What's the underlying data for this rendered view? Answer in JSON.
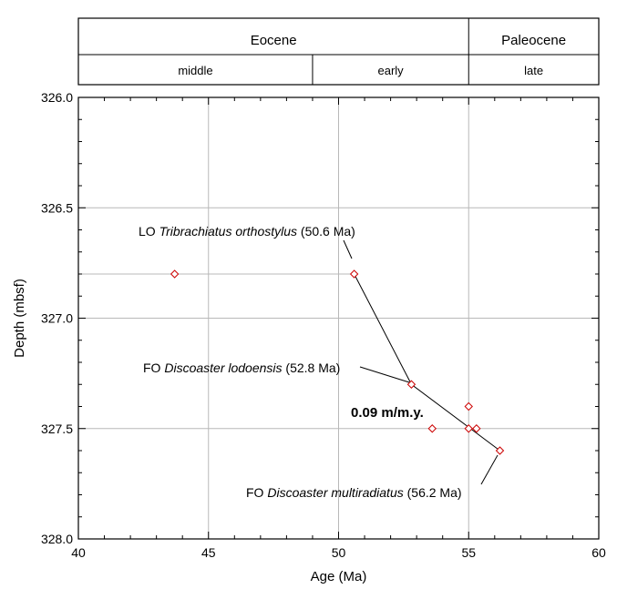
{
  "chart_data": {
    "type": "scatter",
    "xlabel": "Age (Ma)",
    "ylabel": "Depth (mbsf)",
    "xlim": [
      40,
      60
    ],
    "ylim": [
      326.0,
      328.0
    ],
    "y_inverted": true,
    "x_ticks": [
      "40",
      "45",
      "50",
      "55",
      "60"
    ],
    "y_ticks": [
      "326.0",
      "326.5",
      "327.0",
      "327.5",
      "328.0"
    ],
    "grid": true,
    "marker_color": "#cc0000",
    "line_color": "#000000",
    "timescale": {
      "epochs": [
        {
          "label": "Eocene",
          "from": 40,
          "to": 55
        },
        {
          "label": "Paleocene",
          "from": 55,
          "to": 60
        }
      ],
      "subdivisions": [
        {
          "label": "middle",
          "from": 40,
          "to": 49
        },
        {
          "label": "early",
          "from": 49,
          "to": 55
        },
        {
          "label": "late",
          "from": 55,
          "to": 60
        }
      ]
    },
    "points": [
      {
        "x": 43.7,
        "y": 326.8
      },
      {
        "x": 50.6,
        "y": 326.8
      },
      {
        "x": 52.8,
        "y": 327.3
      },
      {
        "x": 53.6,
        "y": 327.5
      },
      {
        "x": 55.0,
        "y": 327.4
      },
      {
        "x": 55.0,
        "y": 327.5
      },
      {
        "x": 55.3,
        "y": 327.5
      },
      {
        "x": 56.2,
        "y": 327.6
      }
    ],
    "line": [
      {
        "x": 50.6,
        "y": 326.8
      },
      {
        "x": 52.8,
        "y": 327.3
      },
      {
        "x": 56.2,
        "y": 327.6
      }
    ],
    "rate_label": "0.09 m/m.y.",
    "annotations": [
      {
        "prefix": "LO ",
        "taxon": "Tribrachiatus orthostylus",
        "suffix": " (50.6 Ma)",
        "x": 50.6,
        "y": 326.8
      },
      {
        "prefix": "FO ",
        "taxon": "Discoaster lodoensis",
        "suffix": " (52.8 Ma)",
        "x": 52.8,
        "y": 327.3
      },
      {
        "prefix": "FO ",
        "taxon": "Discoaster multiradiatus",
        "suffix": " (56.2 Ma)",
        "x": 56.2,
        "y": 327.6
      }
    ]
  }
}
